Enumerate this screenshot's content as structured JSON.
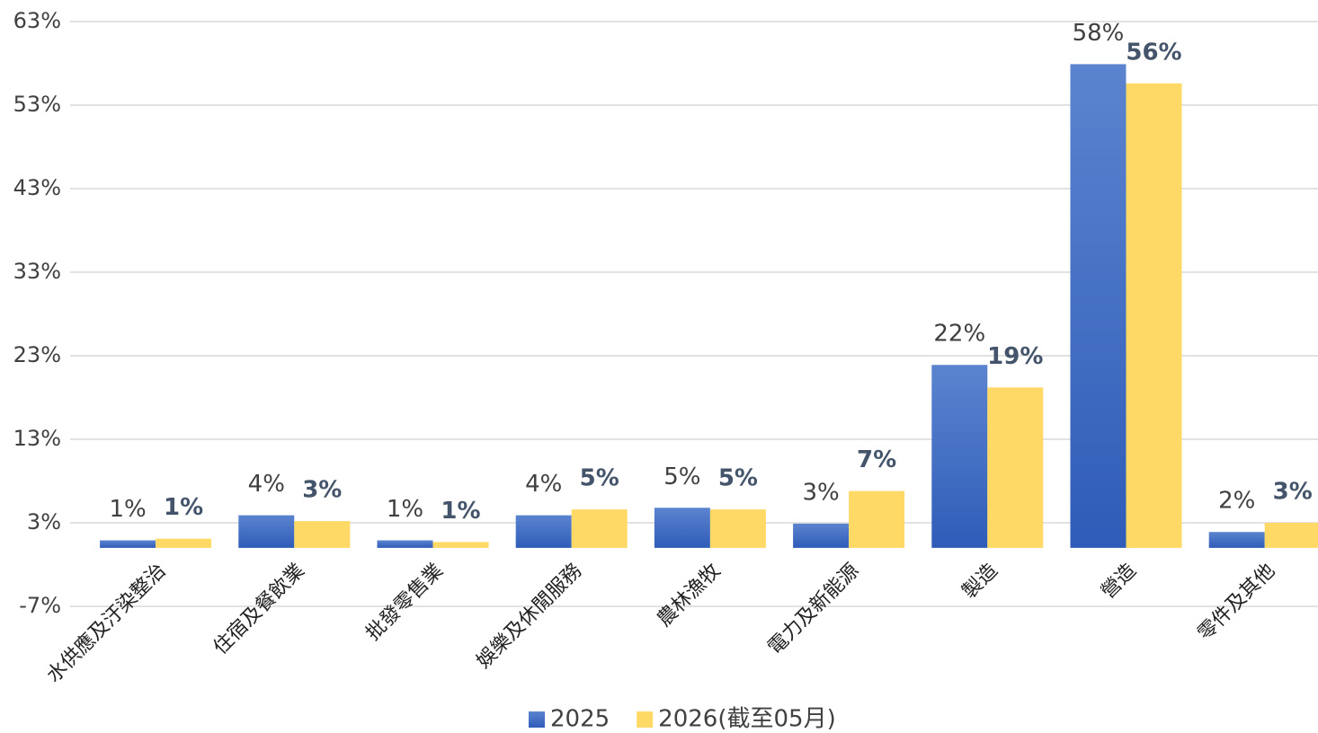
{
  "chart_data": {
    "type": "bar",
    "categories": [
      "水供應及汙染整治",
      "住宿及餐飲業",
      "批發零售業",
      "娛樂及休閒服務",
      "農林漁牧",
      "電力及新能源",
      "製造",
      "營造",
      "零件及其他"
    ],
    "series": [
      {
        "name": "2025",
        "color": "#4472c4",
        "values": [
          0.9,
          3.9,
          0.9,
          3.9,
          4.8,
          2.9,
          21.9,
          57.9,
          1.9
        ],
        "value_labels": [
          "1%",
          "4%",
          "1%",
          "4%",
          "5%",
          "3%",
          "22%",
          "58%",
          "2%"
        ]
      },
      {
        "name": "2026(截至05月)",
        "color": "#ffd966",
        "values": [
          1.1,
          3.2,
          0.7,
          4.6,
          4.6,
          6.8,
          19.2,
          55.6,
          3.0
        ],
        "value_labels": [
          "1%",
          "3%",
          "1%",
          "5%",
          "5%",
          "7%",
          "19%",
          "56%",
          "3%"
        ]
      }
    ],
    "ylim": [
      -7,
      63
    ],
    "yticks": [
      {
        "value": -7,
        "label": "-7%"
      },
      {
        "value": 3,
        "label": "3%"
      },
      {
        "value": 13,
        "label": "13%"
      },
      {
        "value": 23,
        "label": "23%"
      },
      {
        "value": 33,
        "label": "33%"
      },
      {
        "value": 43,
        "label": "43%"
      },
      {
        "value": 53,
        "label": "53%"
      },
      {
        "value": 63,
        "label": "63%"
      }
    ],
    "grid": true,
    "legend": "bottom"
  }
}
